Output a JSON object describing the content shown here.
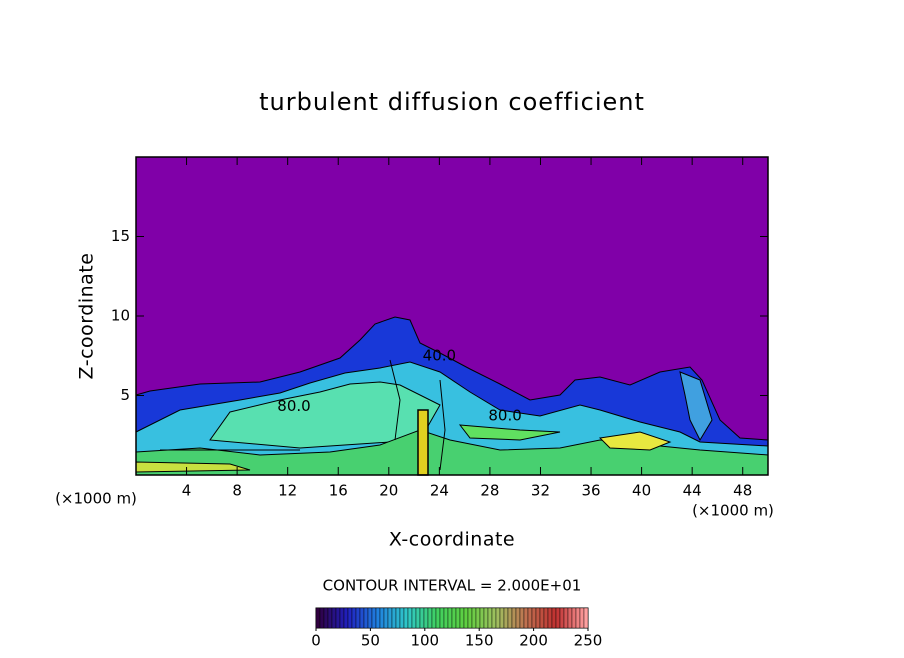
{
  "chart_data": {
    "type": "contour",
    "title": "turbulent diffusion coefficient",
    "x_label": "X-coordinate",
    "y_label": "Z-coordinate",
    "x_unit": "(×1000 m)",
    "y_unit": "(×1000 m)",
    "xlim": [
      0,
      50
    ],
    "ylim": [
      0,
      20
    ],
    "xticks": [
      4,
      8,
      12,
      16,
      20,
      24,
      28,
      32,
      36,
      40,
      44,
      48
    ],
    "yticks": [
      5,
      10,
      15
    ],
    "background_color": "#8000a8",
    "contour_interval_text": "CONTOUR INTERVAL = 2.000E+01",
    "contour_labels": [
      {
        "x": 12.5,
        "y": 4.3,
        "value": 80,
        "label": "80.0"
      },
      {
        "x": 29.2,
        "y": 3.7,
        "value": 80,
        "label": "80.0"
      },
      {
        "x": 24.0,
        "y": 7.5,
        "value": 40,
        "label": "40.0"
      }
    ],
    "colorbar": {
      "clim": [
        0,
        250
      ],
      "ticks": [
        0,
        50,
        100,
        150,
        200,
        250
      ],
      "colors": [
        "#300040",
        "#2020c0",
        "#2080e0",
        "#30c8c8",
        "#40d060",
        "#60d040",
        "#a0c060",
        "#c07050",
        "#c03030",
        "#ffa0a0"
      ]
    }
  }
}
